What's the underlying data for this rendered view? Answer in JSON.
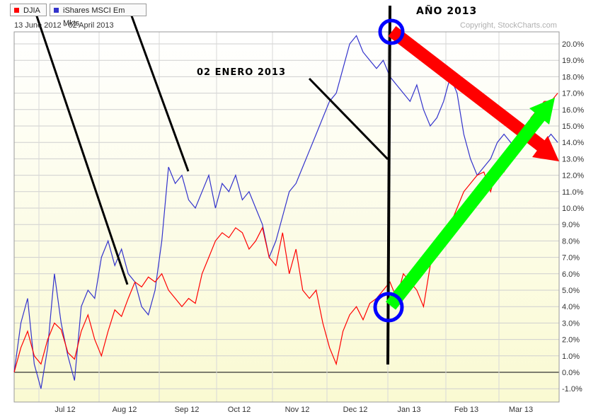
{
  "legend": {
    "series1": "DJIA",
    "series2": "iShares MSCI Em Mkts"
  },
  "date_range": "13 June 2012 - 02 April 2013",
  "copyright": "Copyright, StockCharts.com",
  "annotations": {
    "year_label": "AÑO 2013",
    "date_label": "02 ENERO 2013"
  },
  "colors": {
    "djia": "#ff0000",
    "eem": "#3333cc",
    "arrow_down": "#ff0000",
    "arrow_up": "#00ff00",
    "circle": "#0000ff"
  },
  "chart_data": {
    "type": "line",
    "title": "",
    "xlabel": "",
    "ylabel": "",
    "ylim": [
      -1.5,
      21
    ],
    "yticks": [
      "20.0%",
      "19.0%",
      "18.0%",
      "17.0%",
      "16.0%",
      "15.0%",
      "14.0%",
      "13.0%",
      "12.0%",
      "11.0%",
      "10.0%",
      "9.0%",
      "8.0%",
      "7.0%",
      "6.0%",
      "5.0%",
      "4.0%",
      "3.0%",
      "2.0%",
      "1.0%",
      "0.0%",
      "-1.0%"
    ],
    "ytick_values": [
      20,
      19,
      18,
      17,
      16,
      15,
      14,
      13,
      12,
      11,
      10,
      9,
      8,
      7,
      6,
      5,
      4,
      3,
      2,
      1,
      0,
      -1
    ],
    "xticks": [
      "Jul 12",
      "Aug 12",
      "Sep 12",
      "Oct 12",
      "Nov 12",
      "Dec 12",
      "Jan 13",
      "Feb 13",
      "Mar 13"
    ],
    "grid": true,
    "series": [
      {
        "name": "DJIA",
        "values": [
          0.0,
          1.5,
          2.5,
          1.0,
          0.5,
          2.0,
          3.0,
          2.6,
          1.2,
          0.8,
          2.5,
          3.5,
          2.0,
          1.0,
          2.5,
          3.8,
          3.4,
          4.5,
          5.5,
          5.2,
          5.8,
          5.5,
          6.0,
          5.0,
          4.5,
          4.0,
          4.5,
          4.2,
          6.0,
          7.0,
          8.0,
          8.5,
          8.2,
          8.8,
          8.5,
          7.5,
          8.0,
          8.8,
          7.0,
          6.5,
          8.5,
          6.0,
          7.5,
          5.0,
          4.5,
          5.0,
          3.0,
          1.5,
          0.5,
          2.5,
          3.5,
          4.0,
          3.2,
          4.2,
          4.5,
          5.0,
          5.5,
          4.5,
          6.0,
          5.5,
          5.0,
          4.0,
          6.5,
          7.5,
          8.0,
          9.0,
          10.0,
          11.0,
          11.5,
          12.0,
          12.2,
          11.0,
          12.5,
          12.2,
          13.0,
          14.0,
          14.5,
          15.5,
          16.0,
          16.5,
          16.5,
          17.0
        ]
      },
      {
        "name": "iShares MSCI Em Mkts",
        "values": [
          0.0,
          3.0,
          4.5,
          0.5,
          -1.0,
          1.5,
          6.0,
          3.0,
          1.0,
          -0.5,
          4.0,
          5.0,
          4.5,
          7.0,
          8.0,
          6.5,
          7.5,
          6.0,
          5.5,
          4.0,
          3.5,
          5.0,
          8.0,
          12.5,
          11.5,
          12.0,
          10.5,
          10.0,
          11.0,
          12.0,
          10.0,
          11.5,
          11.0,
          12.0,
          10.5,
          11.0,
          10.0,
          9.0,
          7.0,
          8.0,
          9.5,
          11.0,
          11.5,
          12.5,
          13.5,
          14.5,
          15.5,
          16.5,
          17.0,
          18.5,
          20.0,
          20.5,
          19.5,
          19.0,
          18.5,
          19.0,
          18.0,
          17.5,
          17.0,
          16.5,
          17.5,
          16.0,
          15.0,
          15.5,
          16.5,
          18.0,
          17.0,
          14.5,
          13.0,
          12.0,
          12.5,
          13.0,
          14.0,
          14.5,
          14.0,
          13.5,
          14.5,
          14.0,
          13.5,
          14.0,
          14.5,
          14.0
        ]
      }
    ]
  }
}
